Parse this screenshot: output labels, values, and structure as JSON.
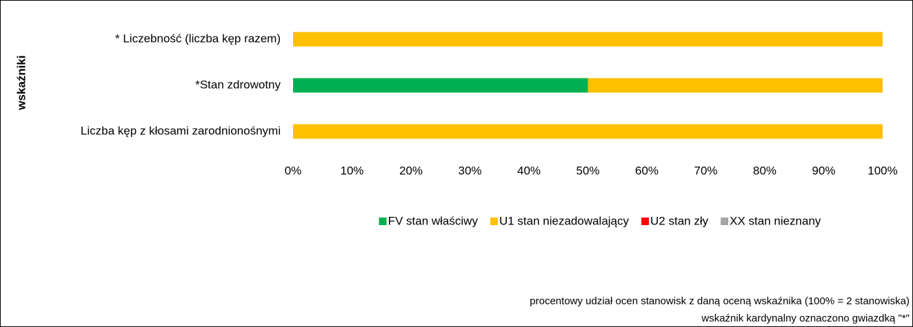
{
  "chart_data": {
    "type": "stacked-barh",
    "y_label": "wskaźniki",
    "categories": [
      "* Liczebność (liczba kęp razem)",
      "*Stan zdrowotny",
      "Liczba kęp z kłosami zarodnionośnymi"
    ],
    "series": [
      {
        "name": "FV stan właściwy",
        "color": "#00b050",
        "values": [
          0,
          50,
          0
        ]
      },
      {
        "name": "U1 stan niezadowalający",
        "color": "#ffc000",
        "values": [
          100,
          50,
          100
        ]
      },
      {
        "name": "U2 stan zły",
        "color": "#ff0000",
        "values": [
          0,
          0,
          0
        ]
      },
      {
        "name": "XX stan nieznany",
        "color": "#a5a5a5",
        "values": [
          0,
          0,
          0
        ]
      }
    ],
    "xlim": [
      0,
      100
    ],
    "xticks": [
      {
        "value": 0,
        "label": "0%"
      },
      {
        "value": 10,
        "label": "10%"
      },
      {
        "value": 20,
        "label": "20%"
      },
      {
        "value": 30,
        "label": "30%"
      },
      {
        "value": 40,
        "label": "40%"
      },
      {
        "value": 50,
        "label": "50%"
      },
      {
        "value": 60,
        "label": "60%"
      },
      {
        "value": 70,
        "label": "70%"
      },
      {
        "value": 80,
        "label": "80%"
      },
      {
        "value": 90,
        "label": "90%"
      },
      {
        "value": 100,
        "label": "100%"
      }
    ],
    "legend": "bottom",
    "notes": [
      "procentowy udział ocen stanowisk z daną oceną wskaźnika (100% = 2 stanowiska)",
      "wskaźnik kardynalny oznaczono gwiazdką \"*\""
    ]
  }
}
